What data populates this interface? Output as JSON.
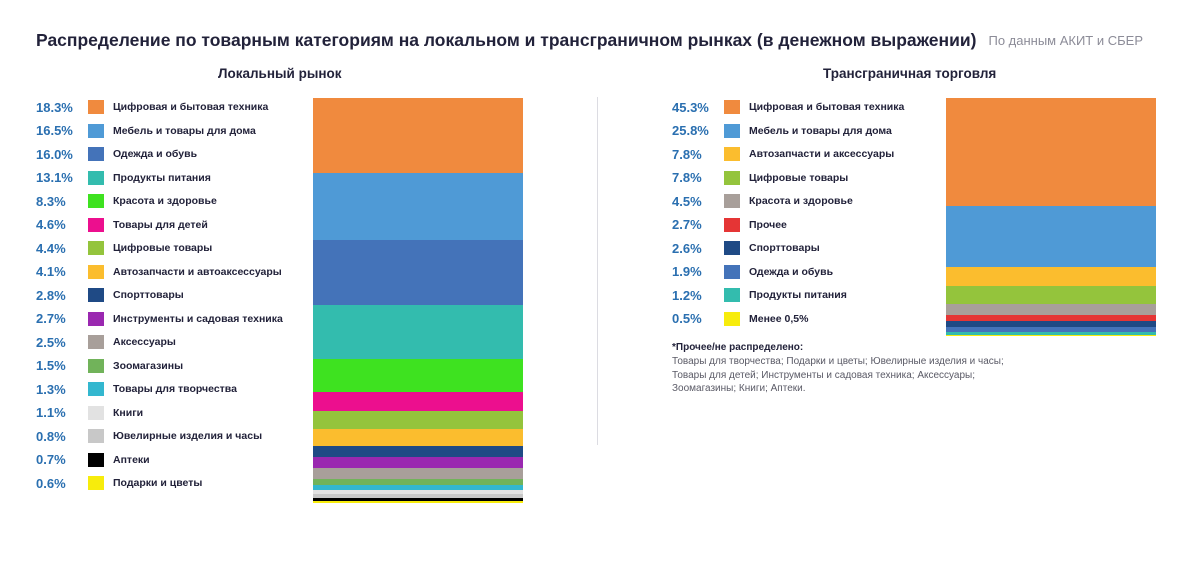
{
  "title": "Распределение по товарным категориям на локальном и трансграничном рынках (в денежном выражении)",
  "source": "По данным АКИТ и СБЕР",
  "chart_data": [
    {
      "type": "bar",
      "title": "Локальный рынок",
      "stacked": true,
      "categories": [
        "Цифровая и бытовая техника",
        "Мебель и товары для дома",
        "Одежда и обувь",
        "Продукты питания",
        "Красота и здоровье",
        "Товары для детей",
        "Цифровые товары",
        "Автозапчасти и автоаксессуары",
        "Спорттовары",
        "Инструменты и садовая техника",
        "Аксессуары",
        "Зоомагазины",
        "Товары для творчества",
        "Книги",
        "Ювелирные изделия и часы",
        "Аптеки",
        "Подарки и цветы"
      ],
      "value_labels": [
        "18.3%",
        "16.5%",
        "16.0%",
        "13.1%",
        "8.3%",
        "4.6%",
        "4.4%",
        "4.1%",
        "2.8%",
        "2.7%",
        "2.5%",
        "1.5%",
        "1.3%",
        "1.1%",
        "0.8%",
        "0.7%",
        "0.6%"
      ],
      "values": [
        18.3,
        16.5,
        16.0,
        13.1,
        8.3,
        4.6,
        4.4,
        4.1,
        2.8,
        2.7,
        2.5,
        1.5,
        1.3,
        1.1,
        0.8,
        0.7,
        0.6
      ],
      "colors": [
        "#f08a3e",
        "#4f9ad6",
        "#4473b9",
        "#33bcae",
        "#3ee220",
        "#ec0f8e",
        "#94c43c",
        "#fbbd2e",
        "#1f4a85",
        "#9a28b0",
        "#a89f9a",
        "#71b35a",
        "#33b7cf",
        "#e2e2e2",
        "#c8c8c8",
        "#000000",
        "#f7ec0c"
      ],
      "legend": "left"
    },
    {
      "type": "bar",
      "title": "Трансграничная торговля",
      "stacked": true,
      "categories": [
        "Цифровая и бытовая техника",
        "Мебель и товары для дома",
        "Автозапчасти и аксессуары",
        "Цифровые товары",
        "Красота и здоровье",
        "Прочее",
        "Спорттовары",
        "Одежда и обувь",
        "Продукты питания",
        "Менее 0,5%"
      ],
      "value_labels": [
        "45.3%",
        "25.8%",
        "7.8%",
        "7.8%",
        "4.5%",
        "2.7%",
        "2.6%",
        "1.9%",
        "1.2%",
        "0.5%"
      ],
      "values": [
        45.3,
        25.8,
        7.8,
        7.8,
        4.5,
        2.7,
        2.6,
        1.9,
        1.2,
        0.5
      ],
      "colors": [
        "#f08a3e",
        "#4f9ad6",
        "#fbbd2e",
        "#94c43c",
        "#a89f9a",
        "#e53535",
        "#1f4a85",
        "#4473b9",
        "#33bcae",
        "#f7ec0c"
      ],
      "legend": "left",
      "note": {
        "title": "*Прочее/не распределено:",
        "lines": [
          "Товары для творчества; Подарки и цветы; Ювелирные изделия и часы;",
          "Товары для детей; Инструменты и садовая техника; Аксессуары;",
          "Зоомагазины; Книги; Аптеки."
        ]
      }
    }
  ]
}
